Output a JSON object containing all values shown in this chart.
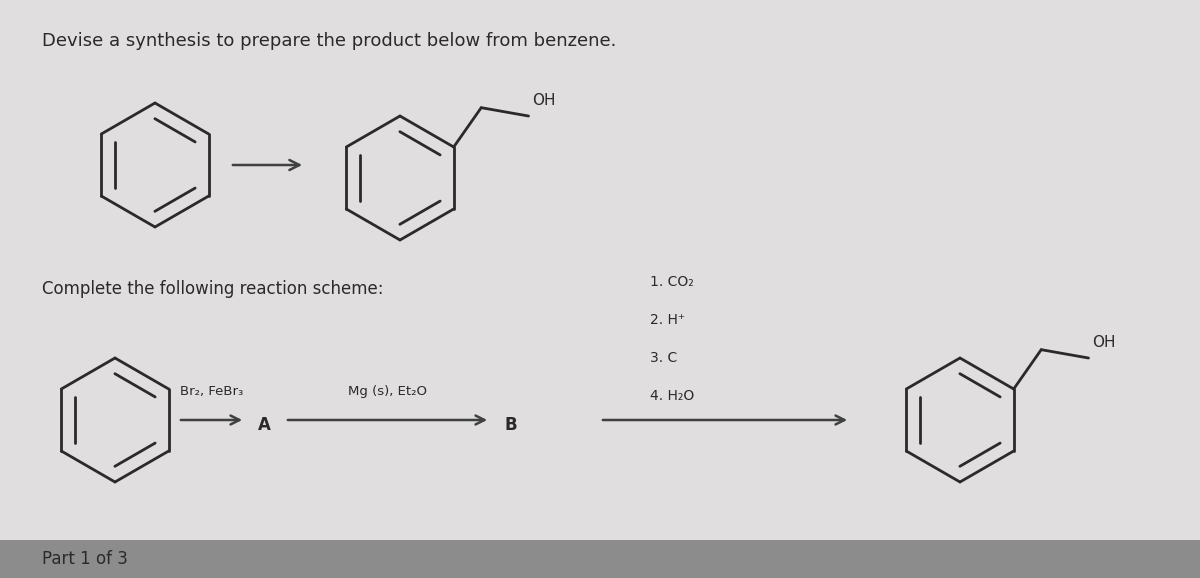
{
  "bg_color": "#e0dede",
  "title_text": "Devise a synthesis to prepare the product below from benzene.",
  "subtitle_text": "Complete the following reaction scheme:",
  "part_text": "Part 1 of 3",
  "reagent1_line1": "Br",
  "reagent1": "Br₂, FeBr₃",
  "label_A": "A",
  "reagent2": "Mg (s), Et₂O",
  "label_B": "B",
  "reagent3_lines": [
    "1. CO₂",
    "2. H⁺",
    "3. C",
    "4. H₂O"
  ],
  "text_color": "#2a2a2a",
  "arrow_color": "#404040",
  "font_size_title": 13,
  "font_size_label": 12,
  "font_size_reagent": 10,
  "font_size_part": 12,
  "bottom_bar_color": "#8c8c8c"
}
